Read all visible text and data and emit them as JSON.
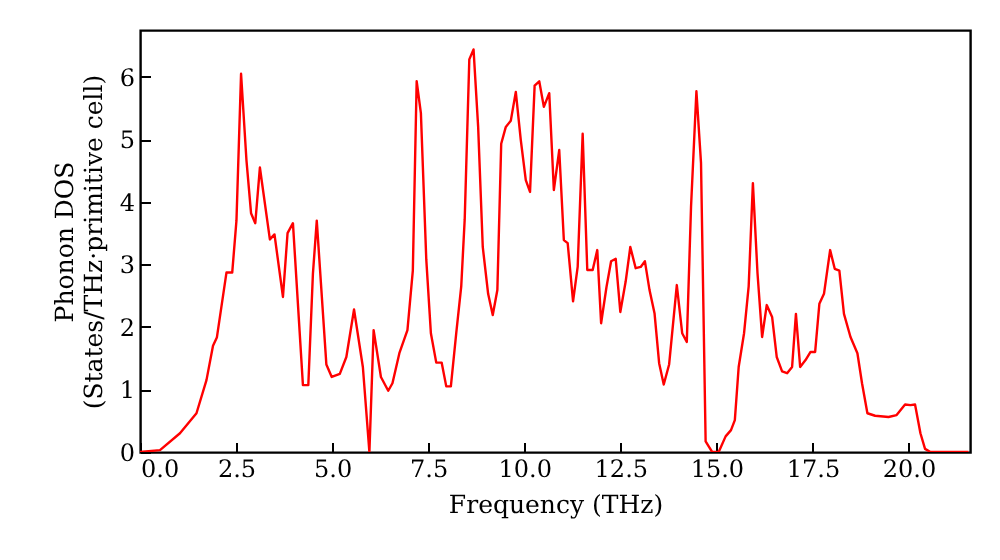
{
  "chart_data": {
    "type": "line",
    "xlabel": "Frequency (THz)",
    "ylabel": "Phonon DOS\n(States/THz·primitive cell)",
    "xlim": [
      0,
      21.6
    ],
    "ylim": [
      0,
      6.75
    ],
    "xticks": [
      {
        "value": 0,
        "label": "0.0"
      },
      {
        "value": 2.5,
        "label": "2.5"
      },
      {
        "value": 5,
        "label": "5.0"
      },
      {
        "value": 7.5,
        "label": "7.5"
      },
      {
        "value": 10,
        "label": "10.0"
      },
      {
        "value": 12.5,
        "label": "12.5"
      },
      {
        "value": 15,
        "label": "15.0"
      },
      {
        "value": 17.5,
        "label": "17.5"
      },
      {
        "value": 20,
        "label": "20.0"
      }
    ],
    "yticks": [
      0,
      1,
      2,
      3,
      4,
      5,
      6
    ],
    "grid": false,
    "marker": "none",
    "line_style": "solid",
    "x": [
      0,
      0.52,
      1.04,
      1.47,
      1.73,
      1.9,
      2.0,
      2.25,
      2.4,
      2.51,
      2.63,
      2.77,
      2.89,
      3.0,
      3.12,
      3.38,
      3.5,
      3.72,
      3.84,
      3.98,
      4.24,
      4.38,
      4.5,
      4.6,
      4.85,
      4.99,
      5.2,
      5.37,
      5.57,
      5.8,
      5.97,
      6.08,
      6.27,
      6.46,
      6.57,
      6.75,
      6.96,
      7.1,
      7.2,
      7.31,
      7.45,
      7.57,
      7.71,
      7.85,
      7.97,
      8.09,
      8.23,
      8.36,
      8.45,
      8.57,
      8.68,
      8.8,
      8.92,
      9.06,
      9.18,
      9.3,
      9.4,
      9.52,
      9.65,
      9.78,
      9.91,
      10.04,
      10.15,
      10.27,
      10.39,
      10.51,
      10.65,
      10.77,
      10.91,
      11.03,
      11.13,
      11.27,
      11.39,
      11.52,
      11.64,
      11.78,
      11.9,
      12.0,
      12.14,
      12.26,
      12.38,
      12.5,
      12.64,
      12.76,
      12.9,
      13.03,
      13.14,
      13.26,
      13.39,
      13.51,
      13.63,
      13.77,
      13.97,
      14.11,
      14.23,
      14.34,
      14.48,
      14.6,
      14.72,
      14.8,
      14.89,
      15.06,
      15.24,
      15.38,
      15.48,
      15.58,
      15.72,
      15.84,
      15.95,
      16.07,
      16.19,
      16.31,
      16.45,
      16.57,
      16.71,
      16.84,
      16.97,
      17.07,
      17.18,
      17.32,
      17.45,
      17.57,
      17.68,
      17.8,
      17.96,
      18.08,
      18.2,
      18.32,
      18.49,
      18.67,
      18.79,
      18.93,
      19.13,
      19.48,
      19.69,
      19.91,
      20.05,
      20.17,
      20.31,
      20.43,
      20.57,
      21.56
    ],
    "series": [
      {
        "color": "#ff0000",
        "values": [
          0,
          0.03,
          0.3,
          0.62,
          1.15,
          1.7,
          1.83,
          2.87,
          2.87,
          3.7,
          6.05,
          4.67,
          3.82,
          3.66,
          4.55,
          3.4,
          3.48,
          2.48,
          3.5,
          3.66,
          1.07,
          1.07,
          2.85,
          3.7,
          1.4,
          1.2,
          1.25,
          1.52,
          2.28,
          1.36,
          0,
          1.95,
          1.2,
          0.98,
          1.1,
          1.58,
          1.95,
          2.9,
          5.93,
          5.42,
          3.08,
          1.9,
          1.43,
          1.43,
          1.05,
          1.05,
          1.9,
          2.65,
          3.72,
          6.28,
          6.44,
          5.2,
          3.28,
          2.53,
          2.19,
          2.59,
          4.93,
          5.2,
          5.3,
          5.76,
          4.99,
          4.35,
          4.16,
          5.86,
          5.93,
          5.52,
          5.74,
          4.19,
          4.83,
          3.39,
          3.34,
          2.41,
          2.96,
          5.09,
          2.91,
          2.91,
          3.23,
          2.06,
          2.64,
          3.05,
          3.09,
          2.24,
          2.73,
          3.28,
          2.94,
          2.96,
          3.05,
          2.59,
          2.22,
          1.42,
          1.08,
          1.4,
          2.67,
          1.9,
          1.76,
          3.92,
          5.77,
          4.62,
          0.17,
          0.09,
          0,
          0,
          0.25,
          0.35,
          0.51,
          1.36,
          1.9,
          2.65,
          4.3,
          2.86,
          1.84,
          2.35,
          2.16,
          1.52,
          1.29,
          1.26,
          1.36,
          2.21,
          1.36,
          1.47,
          1.6,
          1.6,
          2.37,
          2.53,
          3.23,
          2.93,
          2.9,
          2.21,
          1.84,
          1.58,
          1.1,
          0.62,
          0.58,
          0.56,
          0.59,
          0.76,
          0.75,
          0.76,
          0.3,
          0.05,
          0,
          0
        ]
      }
    ]
  }
}
